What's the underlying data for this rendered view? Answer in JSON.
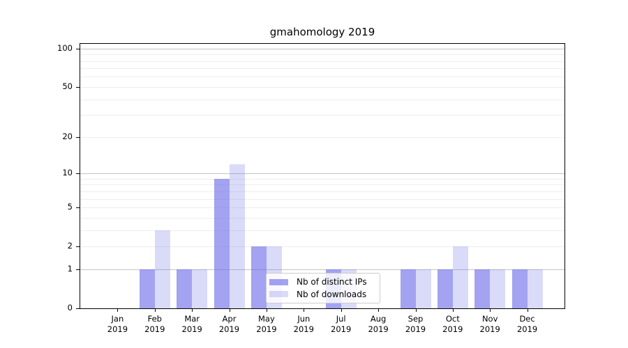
{
  "chart_data": {
    "type": "bar",
    "title": "gmahomology 2019",
    "categories": [
      "Jan 2019",
      "Feb 2019",
      "Mar 2019",
      "Apr 2019",
      "May 2019",
      "Jun 2019",
      "Jul 2019",
      "Aug 2019",
      "Sep 2019",
      "Oct 2019",
      "Nov 2019",
      "Dec 2019"
    ],
    "x": {
      "months": [
        "Jan",
        "Feb",
        "Mar",
        "Apr",
        "May",
        "Jun",
        "Jul",
        "Aug",
        "Sep",
        "Oct",
        "Nov",
        "Dec"
      ],
      "year": "2019"
    },
    "series": [
      {
        "name": "Nb of distinct IPs",
        "color": "rgba(107,107,233,0.62)",
        "values": [
          0,
          1,
          1,
          9,
          2,
          0,
          1,
          0,
          1,
          1,
          1,
          1
        ]
      },
      {
        "name": "Nb of downloads",
        "color": "rgba(107,107,233,0.25)",
        "values": [
          0,
          3,
          1,
          12,
          2,
          0,
          1,
          0,
          1,
          2,
          1,
          1
        ]
      }
    ],
    "y_axis": {
      "scale": "log1p",
      "tick_labels": [
        "0",
        "1",
        "2",
        "5",
        "10",
        "20",
        "50",
        "100"
      ],
      "tick_values": [
        0,
        1,
        2,
        5,
        10,
        20,
        50,
        100
      ],
      "ylim": [
        0,
        109
      ],
      "major_gridlines": [
        1,
        10,
        100
      ],
      "minor_gridlines": [
        2,
        3,
        4,
        5,
        6,
        7,
        8,
        9,
        20,
        30,
        40,
        50,
        60,
        70,
        80,
        90
      ]
    },
    "legend": {
      "position": "lower center",
      "items": [
        "Nb of distinct IPs",
        "Nb of downloads"
      ]
    },
    "grid": true
  },
  "colors": {
    "bar_dark": "rgba(107,107,233,0.62)",
    "bar_light": "rgba(107,107,233,0.25)",
    "gridline_major": "#c3c3c3",
    "gridline_minor": "#ededed",
    "axis": "#000000",
    "legend_border": "#cccccc"
  }
}
